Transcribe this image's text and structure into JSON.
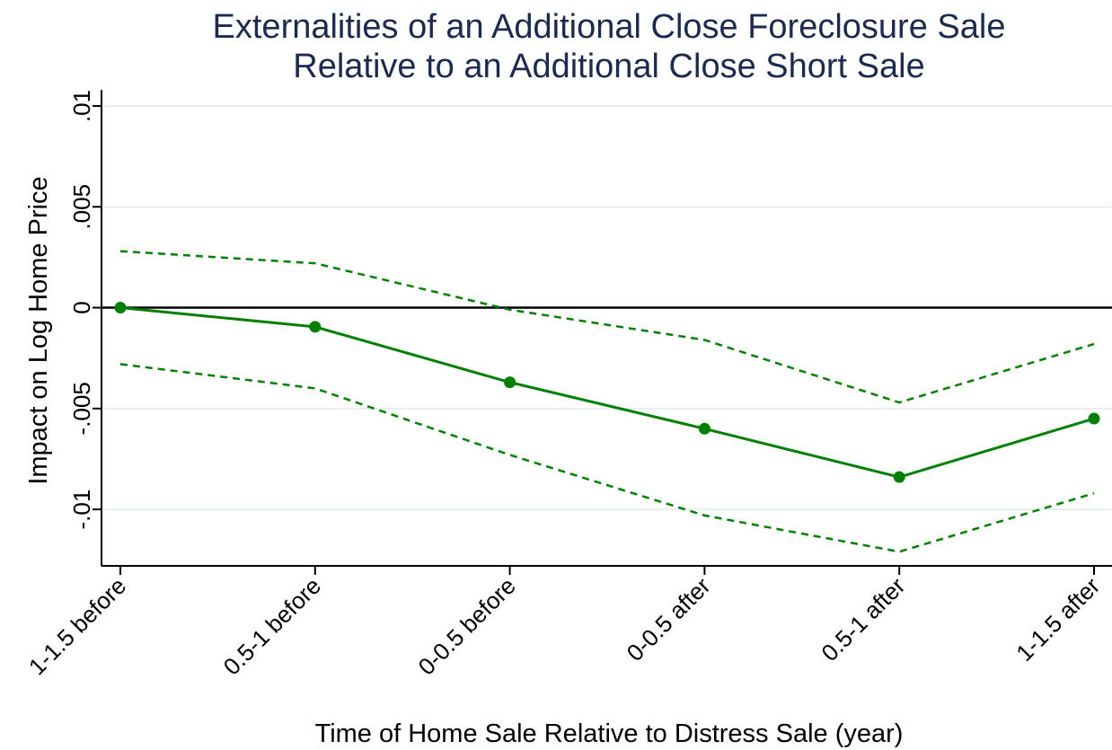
{
  "chart_data": {
    "type": "line",
    "title": "Externalities of an Additional Close Foreclosure Sale",
    "subtitle": "Relative to an Additional Close Short Sale",
    "xlabel": "Time of Home Sale Relative to Distress Sale (year)",
    "ylabel": "Impact on Log Home Price",
    "categories": [
      "1-1.5 before",
      "0.5-1 before",
      "0-0.5 before",
      "0-0.5 after",
      "0.5-1 after",
      "1-1.5 after"
    ],
    "ylim": [
      -0.0128,
      0.0108
    ],
    "yticks": [
      -0.01,
      -0.005,
      0,
      0.005,
      0.01
    ],
    "ytick_labels": [
      "-.01",
      "-.005",
      "0",
      ".005",
      ".01"
    ],
    "grid": true,
    "reference_line": 0,
    "series": [
      {
        "role": "estimate",
        "values": [
          0.0,
          -0.00095,
          -0.0037,
          -0.006,
          -0.0084,
          -0.0055
        ],
        "color": "#008000",
        "style": "solid",
        "markers": true
      },
      {
        "role": "upper",
        "values": [
          0.0028,
          0.0022,
          -0.0001,
          -0.0016,
          -0.0047,
          -0.0018
        ],
        "color": "#008000",
        "style": "dashed",
        "markers": false
      },
      {
        "role": "lower",
        "values": [
          -0.0028,
          -0.004,
          -0.0073,
          -0.0103,
          -0.0121,
          -0.0092
        ],
        "color": "#008000",
        "style": "dashed",
        "markers": false
      }
    ]
  }
}
